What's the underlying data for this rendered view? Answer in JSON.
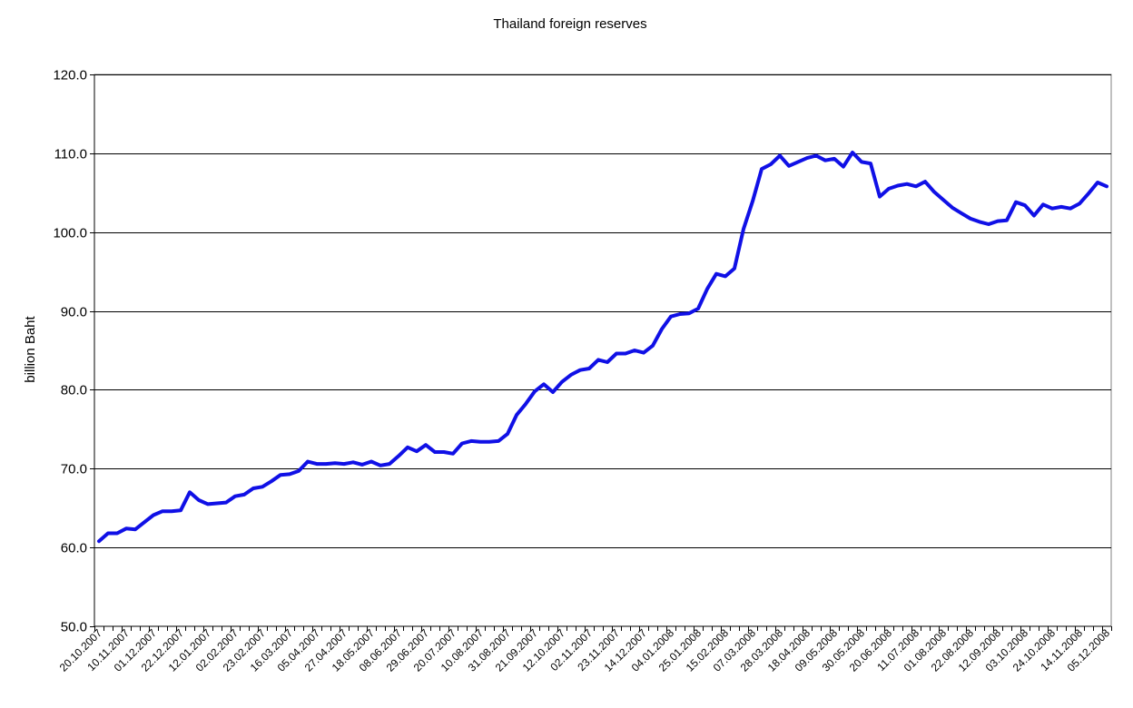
{
  "chart_data": {
    "type": "line",
    "title": "Thailand foreign reserves",
    "ylabel": "billion Baht",
    "xlabel": "",
    "ylim": [
      50,
      120
    ],
    "yticks": [
      "50.0",
      "60.0",
      "70.0",
      "80.0",
      "90.0",
      "100.0",
      "110.0",
      "120.0"
    ],
    "grid": "horizontal",
    "legend": "none",
    "line_color": "#1010e6",
    "x_tick_labels": [
      "20.10.2007",
      "10.11.2007",
      "01.12.2007",
      "22.12.2007",
      "12.01.2007",
      "02.02.2007",
      "23.02.2007",
      "16.03.2007",
      "05.04.2007",
      "27.04.2007",
      "18.05.2007",
      "08.06.2007",
      "29.06.2007",
      "20.07.2007",
      "10.08.2007",
      "31.08.2007",
      "21.09.2007",
      "12.10.2007",
      "02.11.2007",
      "23.11.2007",
      "14.12.2007",
      "04.01.2008",
      "25.01.2008",
      "15.02.2008",
      "07.03.2008",
      "28.03.2008",
      "18.04.2008",
      "09.05.2008",
      "30.05.2008",
      "20.06.2008",
      "11.07.2008",
      "01.08.2008",
      "22.08.2008",
      "12.09.2008",
      "03.10.2008",
      "24.10.2008",
      "14.11.2008",
      "05.12.2008"
    ],
    "series": [
      {
        "values": [
          60.8,
          61.8,
          61.8,
          62.4,
          62.3,
          63.2,
          64.1,
          64.6,
          64.6,
          64.7,
          67.0,
          66.0,
          65.5,
          65.6,
          65.7,
          66.5,
          66.7,
          67.5,
          67.7,
          68.4,
          69.2,
          69.3,
          69.7,
          70.9,
          70.6,
          70.6,
          70.7,
          70.6,
          70.8,
          70.5,
          70.9,
          70.4,
          70.6,
          71.6,
          72.7,
          72.2,
          73.0,
          72.1,
          72.1,
          71.9,
          73.2,
          73.5,
          73.4,
          73.4,
          73.5,
          74.4,
          76.8,
          78.2,
          79.8,
          80.7,
          79.7,
          81.0,
          81.9,
          82.5,
          82.7,
          83.8,
          83.5,
          84.6,
          84.6,
          85.0,
          84.7,
          85.6,
          87.7,
          89.3,
          89.6,
          89.7,
          90.3,
          92.8,
          94.7,
          94.4,
          95.4,
          100.4,
          103.9,
          108.0,
          108.6,
          109.7,
          108.4,
          108.9,
          109.4,
          109.7,
          109.1,
          109.3,
          108.3,
          110.1,
          108.9,
          108.7,
          104.5,
          105.5,
          105.9,
          106.1,
          105.8,
          106.4,
          105.1,
          104.1,
          103.1,
          102.4,
          101.7,
          101.3,
          101.0,
          101.4,
          101.5,
          103.8,
          103.4,
          102.1,
          103.5,
          103.0,
          103.2,
          103.0,
          103.6,
          104.9,
          106.3,
          105.8
        ]
      }
    ]
  }
}
